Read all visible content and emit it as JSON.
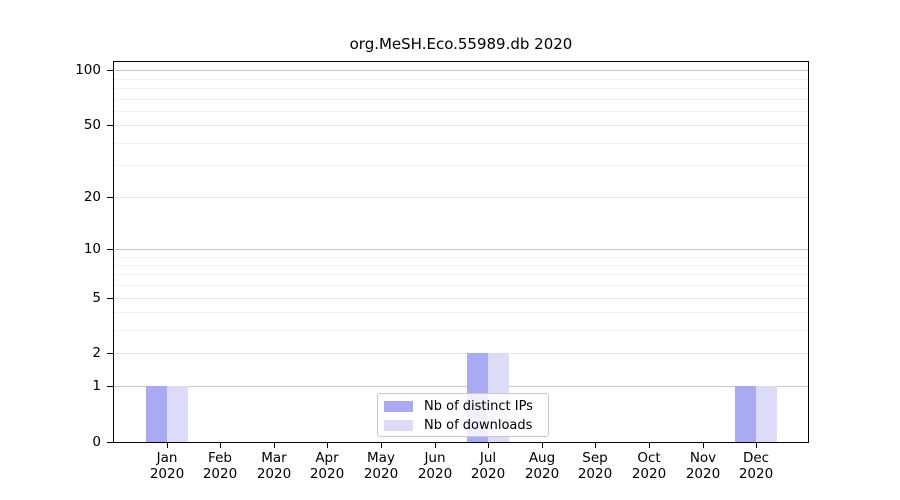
{
  "chart_data": {
    "type": "bar",
    "title": "org.MeSH.Eco.55989.db 2020",
    "categories": [
      "Jan",
      "Feb",
      "Mar",
      "Apr",
      "May",
      "Jun",
      "Jul",
      "Aug",
      "Sep",
      "Oct",
      "Nov",
      "Dec"
    ],
    "category_year_line": "2020",
    "series": [
      {
        "name": "Nb of distinct IPs",
        "color": "#a9a9f4",
        "values": [
          1,
          0,
          0,
          0,
          0,
          0,
          2,
          0,
          0,
          0,
          0,
          1
        ]
      },
      {
        "name": "Nb of downloads",
        "color": "#dcdcf9",
        "values": [
          1,
          0,
          0,
          0,
          0,
          0,
          2,
          0,
          0,
          0,
          0,
          1
        ]
      }
    ],
    "xlabel": "",
    "ylabel": "",
    "yscale": "log1p",
    "ylim": [
      0,
      112
    ],
    "yticks": [
      0,
      1,
      2,
      5,
      10,
      20,
      50,
      100
    ],
    "minor_yticks": [
      3,
      4,
      6,
      7,
      8,
      9,
      30,
      40,
      60,
      70,
      80,
      90
    ],
    "grid": true,
    "legend_position": "bottom-center",
    "colors": {
      "axis": "#000000",
      "grid_power10": "#c9c9c9",
      "grid_major": "#e4e4e4",
      "grid_minor": "#f2f2f2",
      "legend_border": "#c9c9c9"
    }
  }
}
